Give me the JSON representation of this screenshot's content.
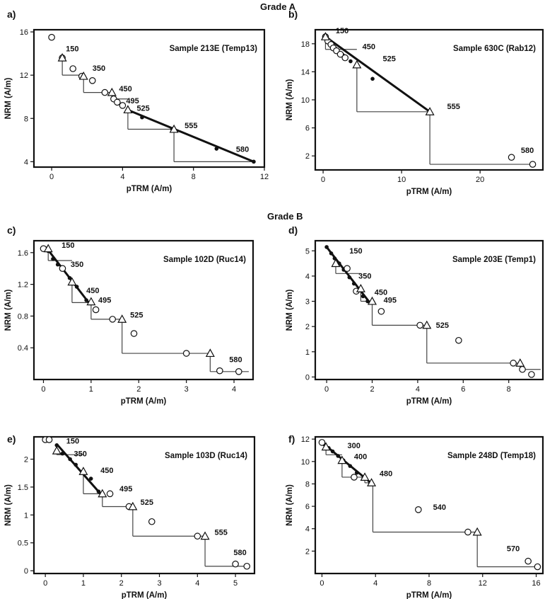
{
  "headers": {
    "grade_a": "Grade A",
    "grade_b": "Grade B"
  },
  "chart_data": [
    {
      "id": "a",
      "type": "scatter",
      "panel_label": "a)",
      "title": "Sample 213E (Temp13)",
      "xlabel": "pTRM (A/m)",
      "ylabel": "NRM (A/m)",
      "xlim": [
        -1,
        12
      ],
      "ylim": [
        3.5,
        16.2
      ],
      "xticks": [
        0,
        4,
        8,
        12
      ],
      "yticks": [
        4,
        8,
        12,
        16
      ],
      "circles": [
        [
          0,
          15.5
        ],
        [
          0.6,
          13.6
        ],
        [
          1.2,
          12.6
        ],
        [
          1.7,
          11.9
        ],
        [
          2.3,
          11.5
        ],
        [
          3.0,
          10.4
        ],
        [
          3.5,
          9.8
        ],
        [
          3.7,
          9.5
        ],
        [
          4.0,
          9.2
        ]
      ],
      "triangles": [
        [
          0.6,
          13.6
        ],
        [
          1.8,
          11.9
        ],
        [
          3.4,
          10.4
        ],
        [
          4.3,
          8.8
        ],
        [
          6.9,
          7.0
        ]
      ],
      "fit_points": [
        [
          4.3,
          8.8
        ],
        [
          5.1,
          8.1
        ],
        [
          6.8,
          7.0
        ],
        [
          9.3,
          5.2
        ],
        [
          11.4,
          4.0
        ]
      ],
      "fit_line": [
        [
          4.2,
          8.85
        ],
        [
          11.4,
          4.0
        ]
      ],
      "checks": [
        {
          "from": [
            0.6,
            13.6
          ],
          "to": [
            0.6,
            12.0
          ]
        },
        {
          "from": [
            1.8,
            11.9
          ],
          "to": [
            1.8,
            10.4
          ]
        },
        {
          "from": [
            3.4,
            10.4
          ],
          "to": [
            3.4,
            9.8
          ]
        },
        {
          "from": [
            4.3,
            8.8
          ],
          "to": [
            4.3,
            7.0
          ]
        },
        {
          "from": [
            6.9,
            7.0
          ],
          "to": [
            6.9,
            4.0
          ]
        }
      ],
      "labels": [
        {
          "text": "150",
          "x": 0.8,
          "y": 14.2
        },
        {
          "text": "350",
          "x": 2.3,
          "y": 12.4
        },
        {
          "text": "450",
          "x": 3.8,
          "y": 10.5
        },
        {
          "text": "495",
          "x": 4.2,
          "y": 9.4
        },
        {
          "text": "525",
          "x": 4.8,
          "y": 8.7
        },
        {
          "text": "555",
          "x": 7.5,
          "y": 7.1
        },
        {
          "text": "580",
          "x": 10.4,
          "y": 4.9
        }
      ]
    },
    {
      "id": "b",
      "type": "scatter",
      "panel_label": "b)",
      "title": "Sample 630C (Rab12)",
      "xlabel": "pTRM (A/m)",
      "ylabel": "NRM (A/m)",
      "xlim": [
        -1,
        28
      ],
      "ylim": [
        0,
        20
      ],
      "xticks": [
        0,
        10,
        20
      ],
      "yticks": [
        2,
        6,
        10,
        14,
        18
      ],
      "circles": [
        [
          0.3,
          19.0
        ],
        [
          0.6,
          18.4
        ],
        [
          1.0,
          17.9
        ],
        [
          1.3,
          17.4
        ],
        [
          1.7,
          17.0
        ],
        [
          2.2,
          16.5
        ],
        [
          2.8,
          16.0
        ],
        [
          24.0,
          1.8
        ],
        [
          26.7,
          0.8
        ]
      ],
      "triangles": [
        [
          0.3,
          19.0
        ],
        [
          4.3,
          15.0
        ],
        [
          13.6,
          8.3
        ]
      ],
      "fit_points": [
        [
          0.5,
          18.5
        ],
        [
          1.5,
          17.4
        ],
        [
          2.5,
          16.4
        ],
        [
          3.5,
          15.5
        ],
        [
          4.3,
          15.0
        ],
        [
          6.3,
          13.0
        ]
      ],
      "fit_line": [
        [
          0.3,
          19.0
        ],
        [
          13.6,
          8.3
        ]
      ],
      "checks": [
        {
          "from": [
            0.3,
            19.0
          ],
          "to": [
            0.3,
            17.2
          ]
        },
        {
          "from": [
            4.3,
            15.0
          ],
          "to": [
            4.3,
            8.3
          ]
        },
        {
          "from": [
            13.6,
            8.3
          ],
          "to": [
            13.6,
            0.8
          ]
        }
      ],
      "labels": [
        {
          "text": "150",
          "x": 1.6,
          "y": 19.5
        },
        {
          "text": "450",
          "x": 5.0,
          "y": 17.2
        },
        {
          "text": "525",
          "x": 7.6,
          "y": 15.5
        },
        {
          "text": "555",
          "x": 15.8,
          "y": 8.7
        },
        {
          "text": "580",
          "x": 25.2,
          "y": 2.4
        }
      ]
    },
    {
      "id": "c",
      "type": "scatter",
      "panel_label": "c)",
      "title": "Sample 102D (Ruc14)",
      "xlabel": "pTRM (A/m)",
      "ylabel": "NRM (A/m)",
      "xlim": [
        -0.2,
        4.4
      ],
      "ylim": [
        0,
        1.75
      ],
      "xticks": [
        0.0,
        1.0,
        2.0,
        3.0,
        4.0
      ],
      "yticks": [
        0.4,
        0.8,
        1.2,
        1.6
      ],
      "circles": [
        [
          0,
          1.65
        ],
        [
          0.4,
          1.4
        ],
        [
          1.1,
          0.88
        ],
        [
          1.45,
          0.76
        ],
        [
          1.9,
          0.58
        ],
        [
          3.0,
          0.33
        ],
        [
          3.7,
          0.11
        ],
        [
          4.1,
          0.1
        ]
      ],
      "triangles": [
        [
          0.1,
          1.65
        ],
        [
          0.6,
          1.23
        ],
        [
          1.0,
          0.98
        ],
        [
          1.65,
          0.76
        ],
        [
          3.5,
          0.33
        ]
      ],
      "fit_points": [
        [
          0.1,
          1.62
        ],
        [
          0.2,
          1.52
        ],
        [
          0.3,
          1.45
        ],
        [
          0.4,
          1.4
        ],
        [
          0.55,
          1.28
        ],
        [
          0.7,
          1.17
        ],
        [
          0.9,
          1.0
        ]
      ],
      "fit_line": [
        [
          0.05,
          1.67
        ],
        [
          0.95,
          0.97
        ]
      ],
      "checks": [
        {
          "from": [
            0.1,
            1.65
          ],
          "to": [
            0.1,
            1.5
          ]
        },
        {
          "from": [
            0.6,
            1.23
          ],
          "to": [
            0.6,
            0.97
          ]
        },
        {
          "from": [
            1.0,
            0.98
          ],
          "to": [
            1.0,
            0.76
          ]
        },
        {
          "from": [
            1.65,
            0.76
          ],
          "to": [
            1.65,
            0.33
          ]
        },
        {
          "from": [
            3.5,
            0.33
          ],
          "to": [
            3.5,
            0.1
          ]
        }
      ],
      "labels": [
        {
          "text": "150",
          "x": 0.38,
          "y": 1.66
        },
        {
          "text": "350",
          "x": 0.57,
          "y": 1.42
        },
        {
          "text": "450",
          "x": 0.9,
          "y": 1.09
        },
        {
          "text": "495",
          "x": 1.15,
          "y": 0.97
        },
        {
          "text": "525",
          "x": 1.82,
          "y": 0.78
        },
        {
          "text": "580",
          "x": 3.9,
          "y": 0.22
        }
      ]
    },
    {
      "id": "d",
      "type": "scatter",
      "panel_label": "d)",
      "title": "Sample 203E (Temp1)",
      "xlabel": "pTRM (A/m)",
      "ylabel": "NRM (A/m)",
      "xlim": [
        -0.5,
        9.5
      ],
      "ylim": [
        -0.1,
        5.4
      ],
      "xticks": [
        0,
        2,
        4,
        6,
        8
      ],
      "yticks": [
        0,
        1,
        2,
        3,
        4,
        5
      ],
      "circles": [
        [
          0.9,
          4.3
        ],
        [
          1.3,
          3.4
        ],
        [
          2.4,
          2.6
        ],
        [
          4.1,
          2.05
        ],
        [
          5.8,
          1.45
        ],
        [
          8.2,
          0.55
        ],
        [
          8.6,
          0.3
        ],
        [
          9.0,
          0.1
        ]
      ],
      "triangles": [
        [
          0.4,
          4.5
        ],
        [
          1.5,
          3.5
        ],
        [
          2.0,
          3.0
        ],
        [
          4.4,
          2.05
        ],
        [
          8.5,
          0.55
        ]
      ],
      "fit_points": [
        [
          0,
          5.15
        ],
        [
          0.2,
          4.9
        ],
        [
          0.35,
          4.7
        ],
        [
          0.55,
          4.5
        ],
        [
          0.75,
          4.25
        ],
        [
          1.0,
          3.95
        ],
        [
          1.2,
          3.7
        ],
        [
          1.4,
          3.45
        ],
        [
          1.6,
          3.2
        ],
        [
          1.8,
          3.0
        ]
      ],
      "fit_line": [
        [
          0,
          5.15
        ],
        [
          1.85,
          3.0
        ]
      ],
      "checks": [
        {
          "from": [
            0.4,
            4.5
          ],
          "to": [
            0.4,
            4.1
          ]
        },
        {
          "from": [
            1.5,
            3.5
          ],
          "to": [
            1.5,
            3.0
          ]
        },
        {
          "from": [
            2.0,
            3.0
          ],
          "to": [
            2.0,
            2.05
          ]
        },
        {
          "from": [
            4.4,
            2.05
          ],
          "to": [
            4.4,
            0.55
          ]
        },
        {
          "from": [
            8.5,
            0.55
          ],
          "to": [
            8.5,
            0.3
          ]
        }
      ],
      "labels": [
        {
          "text": "150",
          "x": 1.0,
          "y": 4.9
        },
        {
          "text": "350",
          "x": 1.4,
          "y": 3.9
        },
        {
          "text": "450",
          "x": 2.1,
          "y": 3.25
        },
        {
          "text": "495",
          "x": 2.5,
          "y": 2.95
        },
        {
          "text": "525",
          "x": 4.8,
          "y": 1.95
        }
      ]
    },
    {
      "id": "e",
      "type": "scatter",
      "panel_label": "e)",
      "title": "Sample 103D (Ruc14)",
      "xlabel": "pTRM (A/m)",
      "ylabel": "NRM (A/m)",
      "xlim": [
        -0.3,
        5.5
      ],
      "ylim": [
        -0.05,
        2.4
      ],
      "xticks": [
        0,
        1,
        2,
        3,
        4,
        5
      ],
      "yticks": [
        0.0,
        0.5,
        1.0,
        1.5,
        2.0
      ],
      "circles": [
        [
          0,
          2.35
        ],
        [
          0.1,
          2.35
        ],
        [
          1.7,
          1.38
        ],
        [
          2.2,
          1.15
        ],
        [
          2.8,
          0.88
        ],
        [
          4.0,
          0.62
        ],
        [
          5.0,
          0.12
        ],
        [
          5.3,
          0.08
        ]
      ],
      "triangles": [
        [
          0.3,
          2.15
        ],
        [
          1.0,
          1.78
        ],
        [
          1.5,
          1.38
        ],
        [
          2.3,
          1.15
        ],
        [
          4.2,
          0.62
        ]
      ],
      "fit_points": [
        [
          0.3,
          2.25
        ],
        [
          0.45,
          2.1
        ],
        [
          0.65,
          2.0
        ],
        [
          0.8,
          1.9
        ],
        [
          1.0,
          1.78
        ],
        [
          1.2,
          1.65
        ],
        [
          1.4,
          1.42
        ]
      ],
      "fit_line": [
        [
          0.3,
          2.27
        ],
        [
          1.45,
          1.38
        ]
      ],
      "checks": [
        {
          "from": [
            0.3,
            2.15
          ],
          "to": [
            0.3,
            2.08
          ]
        },
        {
          "from": [
            1.0,
            1.78
          ],
          "to": [
            1.0,
            1.38
          ]
        },
        {
          "from": [
            1.5,
            1.38
          ],
          "to": [
            1.5,
            1.15
          ]
        },
        {
          "from": [
            2.3,
            1.15
          ],
          "to": [
            2.3,
            0.62
          ]
        },
        {
          "from": [
            4.2,
            0.62
          ],
          "to": [
            4.2,
            0.08
          ]
        }
      ],
      "labels": [
        {
          "text": "150",
          "x": 0.55,
          "y": 2.28
        },
        {
          "text": "350",
          "x": 0.75,
          "y": 2.05
        },
        {
          "text": "450",
          "x": 1.45,
          "y": 1.75
        },
        {
          "text": "495",
          "x": 1.95,
          "y": 1.42
        },
        {
          "text": "525",
          "x": 2.5,
          "y": 1.18
        },
        {
          "text": "555",
          "x": 4.45,
          "y": 0.64
        },
        {
          "text": "580",
          "x": 4.95,
          "y": 0.28
        }
      ]
    },
    {
      "id": "f",
      "type": "scatter",
      "panel_label": "f)",
      "title": "Sample 248D (Temp18)",
      "xlabel": "pTRM (A/m)",
      "ylabel": "NRM (A/m)",
      "xlim": [
        -0.5,
        16.5
      ],
      "ylim": [
        0,
        12.2
      ],
      "xticks": [
        0,
        4,
        8,
        12,
        16
      ],
      "yticks": [
        2,
        4,
        6,
        8,
        10,
        12
      ],
      "circles": [
        [
          0,
          11.7
        ],
        [
          2.4,
          8.6
        ],
        [
          7.2,
          5.7
        ],
        [
          10.9,
          3.7
        ],
        [
          15.4,
          1.1
        ],
        [
          16.1,
          0.6
        ]
      ],
      "triangles": [
        [
          0.3,
          11.3
        ],
        [
          1.5,
          10.1
        ],
        [
          3.2,
          8.6
        ],
        [
          3.7,
          8.1
        ],
        [
          11.6,
          3.7
        ]
      ],
      "fit_points": [
        [
          0.2,
          11.5
        ],
        [
          0.5,
          11.2
        ],
        [
          0.8,
          10.9
        ],
        [
          1.2,
          10.5
        ],
        [
          1.6,
          10.1
        ],
        [
          2.1,
          9.6
        ],
        [
          2.6,
          9.0
        ],
        [
          3.1,
          8.5
        ],
        [
          3.6,
          8.05
        ]
      ],
      "fit_line": [
        [
          0.1,
          11.6
        ],
        [
          3.8,
          7.95
        ]
      ],
      "checks": [
        {
          "from": [
            0.3,
            11.3
          ],
          "to": [
            0.3,
            10.6
          ]
        },
        {
          "from": [
            1.5,
            10.1
          ],
          "to": [
            1.5,
            8.6
          ]
        },
        {
          "from": [
            3.2,
            8.6
          ],
          "to": [
            3.2,
            8.1
          ]
        },
        {
          "from": [
            3.8,
            8.0
          ],
          "to": [
            3.8,
            3.7
          ]
        },
        {
          "from": [
            11.6,
            3.7
          ],
          "to": [
            11.6,
            0.6
          ]
        }
      ],
      "labels": [
        {
          "text": "300",
          "x": 1.9,
          "y": 11.2
        },
        {
          "text": "400",
          "x": 2.4,
          "y": 10.2
        },
        {
          "text": "480",
          "x": 4.3,
          "y": 8.7
        },
        {
          "text": "540",
          "x": 8.3,
          "y": 5.7
        },
        {
          "text": "570",
          "x": 13.8,
          "y": 2.0
        }
      ]
    }
  ]
}
